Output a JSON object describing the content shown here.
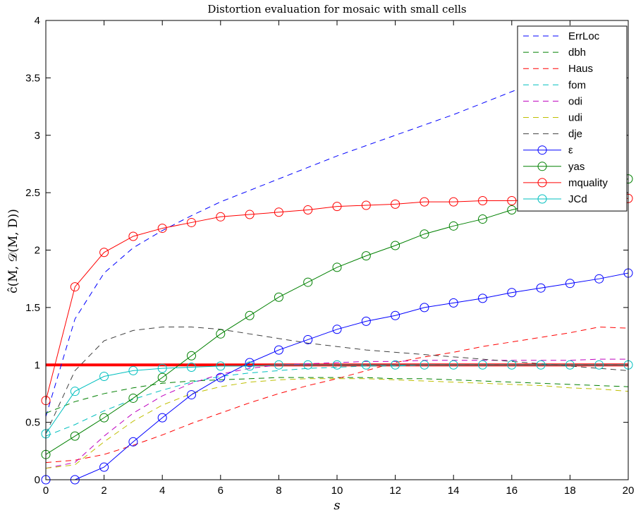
{
  "chart_data": {
    "type": "line",
    "title": "Distortion evaluation for mosaic with small cells",
    "xlabel": "s",
    "ylabel": "ĉ(M, 𝒟(M, D))",
    "xlim": [
      0,
      20
    ],
    "ylim": [
      0,
      4
    ],
    "x_ticks": [
      0,
      2,
      4,
      6,
      8,
      10,
      12,
      14,
      16,
      18,
      20
    ],
    "y_ticks": [
      0,
      0.5,
      1,
      1.5,
      2,
      2.5,
      3,
      3.5,
      4
    ],
    "grid": false,
    "legend_position": "top-right",
    "x": [
      0,
      1,
      2,
      3,
      4,
      5,
      6,
      7,
      8,
      9,
      10,
      11,
      12,
      13,
      14,
      15,
      16,
      17,
      18,
      19,
      20
    ],
    "series": [
      {
        "name": "ErrLoc",
        "color": "#0000ff",
        "style": "dashed",
        "marker": "none",
        "values": [
          0.55,
          1.4,
          1.8,
          2.02,
          2.17,
          2.3,
          2.42,
          2.52,
          2.62,
          2.72,
          2.82,
          2.91,
          3.0,
          3.09,
          3.18,
          3.28,
          3.38,
          3.48,
          3.56,
          3.65,
          3.75
        ]
      },
      {
        "name": "dbh",
        "color": "#008000",
        "style": "dashed",
        "marker": "none",
        "values": [
          0.58,
          0.68,
          0.75,
          0.8,
          0.84,
          0.86,
          0.87,
          0.88,
          0.89,
          0.89,
          0.89,
          0.89,
          0.88,
          0.88,
          0.87,
          0.86,
          0.85,
          0.84,
          0.83,
          0.82,
          0.81
        ]
      },
      {
        "name": "Haus",
        "color": "#ff0000",
        "style": "dashed",
        "marker": "none",
        "values": [
          0.15,
          0.17,
          0.22,
          0.3,
          0.39,
          0.49,
          0.58,
          0.67,
          0.75,
          0.82,
          0.88,
          0.95,
          1.02,
          1.07,
          1.11,
          1.16,
          1.2,
          1.24,
          1.28,
          1.33,
          1.32
        ]
      },
      {
        "name": "fom",
        "color": "#00bfbf",
        "style": "dashed",
        "marker": "none",
        "values": [
          0.38,
          0.48,
          0.6,
          0.7,
          0.78,
          0.85,
          0.9,
          0.93,
          0.95,
          0.97,
          0.98,
          0.99,
          0.99,
          1.0,
          1.0,
          1.0,
          1.0,
          1.0,
          1.0,
          1.0,
          1.0
        ]
      },
      {
        "name": "odi",
        "color": "#bf00bf",
        "style": "dashed",
        "marker": "none",
        "values": [
          0.1,
          0.15,
          0.38,
          0.58,
          0.73,
          0.84,
          0.92,
          0.97,
          1.0,
          1.01,
          1.02,
          1.03,
          1.03,
          1.04,
          1.04,
          1.04,
          1.04,
          1.04,
          1.04,
          1.05,
          1.05
        ]
      },
      {
        "name": "udi",
        "color": "#bfbf00",
        "style": "dashed",
        "marker": "none",
        "values": [
          0.1,
          0.13,
          0.33,
          0.51,
          0.65,
          0.75,
          0.81,
          0.85,
          0.87,
          0.88,
          0.88,
          0.88,
          0.87,
          0.86,
          0.85,
          0.84,
          0.83,
          0.82,
          0.8,
          0.79,
          0.77
        ]
      },
      {
        "name": "dje",
        "color": "#404040",
        "style": "dashed",
        "marker": "none",
        "values": [
          0.4,
          0.95,
          1.21,
          1.3,
          1.33,
          1.33,
          1.31,
          1.27,
          1.23,
          1.19,
          1.16,
          1.13,
          1.11,
          1.09,
          1.07,
          1.05,
          1.03,
          1.01,
          0.99,
          0.97,
          0.95
        ]
      },
      {
        "name": "ε",
        "color": "#0000ff",
        "style": "solid",
        "marker": "circle",
        "values": [
          0.0,
          0.0,
          0.11,
          0.33,
          0.54,
          0.74,
          0.89,
          1.02,
          1.13,
          1.22,
          1.31,
          1.38,
          1.43,
          1.5,
          1.54,
          1.58,
          1.63,
          1.67,
          1.71,
          1.75,
          1.8
        ]
      },
      {
        "name": "yas",
        "color": "#008000",
        "style": "solid",
        "marker": "circle",
        "values": [
          0.22,
          0.38,
          0.54,
          0.71,
          0.89,
          1.08,
          1.27,
          1.43,
          1.59,
          1.72,
          1.85,
          1.95,
          2.04,
          2.14,
          2.21,
          2.27,
          2.35,
          2.41,
          2.48,
          2.55,
          2.62
        ]
      },
      {
        "name": "mquality",
        "color": "#ff0000",
        "style": "solid",
        "marker": "circle",
        "values": [
          0.69,
          1.68,
          1.98,
          2.12,
          2.19,
          2.24,
          2.29,
          2.31,
          2.33,
          2.35,
          2.38,
          2.39,
          2.4,
          2.42,
          2.42,
          2.43,
          2.43,
          2.44,
          2.44,
          2.44,
          2.45
        ]
      },
      {
        "name": "JCd",
        "color": "#00bfbf",
        "style": "solid",
        "marker": "circle",
        "values": [
          0.4,
          0.77,
          0.9,
          0.95,
          0.97,
          0.98,
          0.99,
          0.99,
          1.0,
          1.0,
          1.0,
          1.0,
          1.0,
          1.0,
          1.0,
          1.0,
          1.0,
          1.0,
          1.0,
          1.0,
          1.0
        ]
      }
    ],
    "reference_line": {
      "value": 1,
      "color": "#ff0000"
    }
  }
}
